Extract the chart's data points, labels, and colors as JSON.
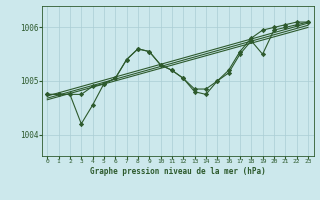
{
  "xlabel": "Graphe pression niveau de la mer (hPa)",
  "background_color": "#cce8ec",
  "grid_color": "#aacdd4",
  "line_color": "#2d5a2d",
  "xlim": [
    -0.5,
    23.5
  ],
  "ylim": [
    1003.6,
    1006.4
  ],
  "yticks": [
    1004,
    1005,
    1006
  ],
  "xticks": [
    0,
    1,
    2,
    3,
    4,
    5,
    6,
    7,
    8,
    9,
    10,
    11,
    12,
    13,
    14,
    15,
    16,
    17,
    18,
    19,
    20,
    21,
    22,
    23
  ],
  "series_a_x": [
    0,
    1,
    2,
    3,
    4,
    5,
    6,
    7,
    8,
    9,
    10,
    11,
    12,
    13,
    14,
    15,
    16,
    17,
    18,
    19,
    20,
    21,
    22,
    23
  ],
  "series_a_y": [
    1004.75,
    1004.75,
    1004.75,
    1004.75,
    1004.9,
    1004.95,
    1005.05,
    1005.4,
    1005.6,
    1005.55,
    1005.3,
    1005.2,
    1005.05,
    1004.85,
    1004.85,
    1005.0,
    1005.2,
    1005.55,
    1005.8,
    1005.95,
    1006.0,
    1006.05,
    1006.1,
    1006.1
  ],
  "series_b_x": [
    0,
    1,
    2,
    3,
    4,
    5,
    6,
    7,
    8,
    9,
    10,
    11,
    12,
    13,
    14,
    15,
    16,
    17,
    18,
    19,
    20,
    21,
    22,
    23
  ],
  "series_b_y": [
    1004.75,
    1004.75,
    1004.75,
    1004.2,
    1004.55,
    1004.95,
    1005.05,
    1005.4,
    1005.6,
    1005.55,
    1005.3,
    1005.2,
    1005.05,
    1004.8,
    1004.75,
    1005.0,
    1005.15,
    1005.5,
    1005.75,
    1005.5,
    1005.95,
    1006.0,
    1006.05,
    1006.1
  ],
  "trend1_x": [
    0,
    23
  ],
  "trend1_y": [
    1004.72,
    1006.08
  ],
  "trend2_x": [
    0,
    23
  ],
  "trend2_y": [
    1004.68,
    1006.04
  ],
  "trend3_x": [
    0,
    23
  ],
  "trend3_y": [
    1004.65,
    1006.0
  ]
}
